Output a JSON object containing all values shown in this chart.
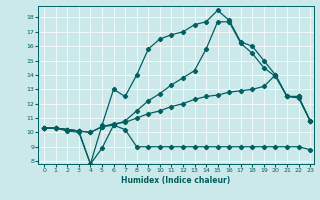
{
  "xlabel": "Humidex (Indice chaleur)",
  "background_color": "#cce9e9",
  "line_color": "#006060",
  "xlim": [
    -0.5,
    23.3
  ],
  "ylim": [
    7.8,
    18.8
  ],
  "yticks": [
    8,
    9,
    10,
    11,
    12,
    13,
    14,
    15,
    16,
    17,
    18
  ],
  "xticks": [
    0,
    1,
    2,
    3,
    4,
    5,
    6,
    7,
    8,
    9,
    10,
    11,
    12,
    13,
    14,
    15,
    16,
    17,
    18,
    19,
    20,
    21,
    22,
    23
  ],
  "line1_x": [
    0,
    1,
    2,
    3,
    4,
    5,
    6,
    7,
    8,
    9,
    10,
    11,
    12,
    13,
    14,
    15,
    16,
    17,
    18,
    19,
    20,
    21,
    22,
    23
  ],
  "line1_y": [
    10.3,
    10.3,
    10.2,
    10.1,
    7.8,
    8.9,
    10.5,
    10.2,
    9.0,
    9.0,
    9.0,
    9.0,
    9.0,
    9.0,
    9.0,
    9.0,
    9.0,
    9.0,
    9.0,
    9.0,
    9.0,
    9.0,
    9.0,
    8.8
  ],
  "line2_x": [
    0,
    1,
    2,
    3,
    4,
    5,
    6,
    7,
    8,
    9,
    10,
    11,
    12,
    13,
    14,
    15,
    16,
    17,
    18,
    19,
    20,
    21,
    22,
    23
  ],
  "line2_y": [
    10.3,
    10.3,
    10.2,
    10.1,
    10.0,
    10.4,
    10.6,
    10.7,
    11.0,
    11.3,
    11.5,
    11.8,
    12.0,
    12.3,
    12.5,
    12.6,
    12.8,
    12.9,
    13.0,
    13.2,
    14.0,
    12.5,
    12.5,
    10.8
  ],
  "line3_x": [
    0,
    1,
    2,
    3,
    4,
    5,
    6,
    7,
    8,
    9,
    10,
    11,
    12,
    13,
    14,
    15,
    16,
    17,
    18,
    19,
    20,
    21,
    22,
    23
  ],
  "line3_y": [
    10.3,
    10.3,
    10.2,
    10.1,
    10.0,
    10.4,
    10.5,
    10.8,
    11.5,
    12.2,
    12.7,
    13.3,
    13.8,
    14.3,
    15.8,
    17.7,
    17.7,
    16.2,
    15.5,
    14.5,
    13.9,
    12.5,
    12.4,
    10.8
  ],
  "line4_x": [
    0,
    1,
    2,
    3,
    4,
    5,
    6,
    7,
    8,
    9,
    10,
    11,
    12,
    13,
    14,
    15,
    16,
    17,
    18,
    19,
    20,
    21,
    22,
    23
  ],
  "line4_y": [
    10.3,
    10.3,
    10.1,
    10.0,
    7.8,
    10.5,
    13.0,
    12.5,
    14.0,
    15.8,
    16.5,
    16.8,
    17.0,
    17.5,
    17.7,
    18.5,
    17.8,
    16.3,
    16.0,
    15.0,
    14.0,
    12.5,
    12.5,
    10.8
  ]
}
